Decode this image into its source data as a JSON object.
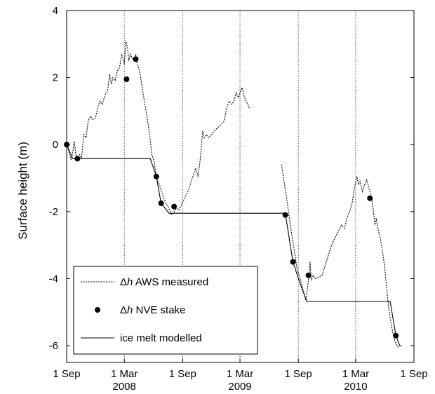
{
  "chart_data": {
    "type": "line",
    "title": "",
    "xlabel": "",
    "ylabel": "Surface height (m)",
    "ylim": [
      -6.5,
      4
    ],
    "xlim": [
      "2007-09-01",
      "2010-09-01"
    ],
    "grid": "vertical dotted lines at each x tick",
    "legend_placement": "bottom-left",
    "x_ticks": [
      {
        "date": "2007-09-01",
        "label": "1 Sep",
        "year_label": ""
      },
      {
        "date": "2008-03-01",
        "label": "1 Mar",
        "year_label": "2008"
      },
      {
        "date": "2008-09-01",
        "label": "1 Sep",
        "year_label": ""
      },
      {
        "date": "2009-03-01",
        "label": "1 Mar",
        "year_label": "2009"
      },
      {
        "date": "2009-09-01",
        "label": "1 Sep",
        "year_label": ""
      },
      {
        "date": "2010-03-01",
        "label": "1 Mar",
        "year_label": "2010"
      },
      {
        "date": "2010-09-01",
        "label": "1 Sep",
        "year_label": ""
      }
    ],
    "y_ticks": [
      {
        "value": 4,
        "label": "4"
      },
      {
        "value": 2,
        "label": "2"
      },
      {
        "value": 0,
        "label": "0"
      },
      {
        "value": -2,
        "label": "-2"
      },
      {
        "value": -4,
        "label": "-4"
      },
      {
        "value": -6,
        "label": "-6"
      }
    ],
    "legend": [
      {
        "symbol": "Δ",
        "var": "h",
        "text": " AWS measured",
        "style": "dotted"
      },
      {
        "symbol": "Δ",
        "var": "h",
        "text": " NVE stake",
        "style": "marker"
      },
      {
        "symbol": "",
        "var": "",
        "text": "ice melt modelled",
        "style": "solid"
      }
    ],
    "series": [
      {
        "name": "Δh AWS measured",
        "style": "dotted",
        "segments": [
          [
            [
              "2007-09-01",
              0.0
            ],
            [
              "2007-09-08",
              -0.2
            ],
            [
              "2007-09-15",
              -0.45
            ],
            [
              "2007-09-20",
              -0.25
            ],
            [
              "2007-09-25",
              0.1
            ],
            [
              "2007-09-30",
              -0.3
            ],
            [
              "2007-10-05",
              -0.45
            ],
            [
              "2007-10-12",
              -0.3
            ],
            [
              "2007-10-18",
              -0.4
            ],
            [
              "2007-10-25",
              0.3
            ],
            [
              "2007-11-01",
              0.2
            ],
            [
              "2007-11-08",
              0.7
            ],
            [
              "2007-11-15",
              0.85
            ],
            [
              "2007-11-22",
              0.75
            ],
            [
              "2007-12-01",
              0.8
            ],
            [
              "2007-12-08",
              1.1
            ],
            [
              "2007-12-15",
              1.3
            ],
            [
              "2007-12-22",
              1.2
            ],
            [
              "2008-01-01",
              1.5
            ],
            [
              "2008-01-08",
              1.6
            ],
            [
              "2008-01-15",
              2.1
            ],
            [
              "2008-01-20",
              1.8
            ],
            [
              "2008-01-25",
              2.0
            ],
            [
              "2008-02-01",
              1.9
            ],
            [
              "2008-02-08",
              2.2
            ],
            [
              "2008-02-15",
              2.3
            ],
            [
              "2008-02-22",
              2.7
            ],
            [
              "2008-03-01",
              2.4
            ],
            [
              "2008-03-06",
              3.1
            ],
            [
              "2008-03-11",
              2.9
            ],
            [
              "2008-03-15",
              2.5
            ],
            [
              "2008-03-20",
              2.7
            ],
            [
              "2008-03-25",
              2.6
            ],
            [
              "2008-04-01",
              2.5
            ],
            [
              "2008-04-06",
              2.7
            ],
            [
              "2008-04-11",
              2.4
            ],
            [
              "2008-04-18",
              2.2
            ],
            [
              "2008-04-25",
              1.8
            ],
            [
              "2008-05-03",
              1.3
            ],
            [
              "2008-05-12",
              0.8
            ],
            [
              "2008-05-20",
              0.3
            ],
            [
              "2008-05-27",
              -0.3
            ],
            [
              "2008-06-03",
              -0.5
            ],
            [
              "2008-06-10",
              -0.95
            ],
            [
              "2008-06-20",
              -1.2
            ],
            [
              "2008-06-30",
              -1.5
            ],
            [
              "2008-07-10",
              -1.75
            ],
            [
              "2008-07-20",
              -1.9
            ],
            [
              "2008-07-28",
              -2.1
            ],
            [
              "2008-08-05",
              -2.0
            ],
            [
              "2008-08-12",
              -1.9
            ],
            [
              "2008-08-20",
              -1.95
            ],
            [
              "2008-08-28",
              -1.8
            ],
            [
              "2008-09-05",
              -1.65
            ],
            [
              "2008-09-12",
              -1.5
            ],
            [
              "2008-09-20",
              -1.35
            ],
            [
              "2008-09-28",
              -1.1
            ],
            [
              "2008-10-05",
              -0.9
            ],
            [
              "2008-10-12",
              -0.7
            ],
            [
              "2008-10-20",
              -0.95
            ],
            [
              "2008-10-27",
              -0.4
            ],
            [
              "2008-11-03",
              0.4
            ],
            [
              "2008-11-08",
              0.2
            ],
            [
              "2008-11-15",
              0.3
            ],
            [
              "2008-11-22",
              0.2
            ],
            [
              "2008-12-01",
              0.3
            ],
            [
              "2008-12-10",
              0.4
            ],
            [
              "2008-12-20",
              0.5
            ],
            [
              "2009-01-01",
              0.6
            ],
            [
              "2009-01-10",
              0.7
            ],
            [
              "2009-01-18",
              1.1
            ],
            [
              "2009-01-26",
              1.3
            ],
            [
              "2009-02-03",
              1.2
            ],
            [
              "2009-02-10",
              1.3
            ],
            [
              "2009-02-17",
              1.55
            ],
            [
              "2009-02-24",
              1.4
            ],
            [
              "2009-03-03",
              1.6
            ],
            [
              "2009-03-08",
              1.7
            ],
            [
              "2009-03-14",
              1.45
            ],
            [
              "2009-03-20",
              1.3
            ],
            [
              "2009-03-26",
              1.2
            ],
            [
              "2009-04-01",
              1.05
            ]
          ],
          [
            [
              "2009-07-10",
              -0.6
            ],
            [
              "2009-07-18",
              -1.1
            ],
            [
              "2009-07-25",
              -1.5
            ],
            [
              "2009-08-01",
              -2.0
            ],
            [
              "2009-08-10",
              -2.6
            ],
            [
              "2009-08-20",
              -3.2
            ],
            [
              "2009-08-28",
              -3.7
            ],
            [
              "2009-09-07",
              -4.0
            ],
            [
              "2009-09-15",
              -4.3
            ],
            [
              "2009-09-25",
              -4.65
            ],
            [
              "2009-10-05",
              -3.9
            ],
            [
              "2009-10-08",
              -3.5
            ],
            [
              "2009-10-12",
              -4.05
            ],
            [
              "2009-10-18",
              -3.9
            ],
            [
              "2009-10-25",
              -4.0
            ],
            [
              "2009-11-05",
              -3.95
            ],
            [
              "2009-11-15",
              -3.9
            ],
            [
              "2009-11-25",
              -3.6
            ],
            [
              "2009-12-05",
              -3.3
            ],
            [
              "2009-12-15",
              -3.0
            ],
            [
              "2009-12-25",
              -2.8
            ],
            [
              "2010-01-05",
              -2.6
            ],
            [
              "2010-01-15",
              -2.4
            ],
            [
              "2010-01-25",
              -2.5
            ],
            [
              "2010-02-01",
              -2.2
            ],
            [
              "2010-02-10",
              -2.0
            ],
            [
              "2010-02-18",
              -1.75
            ],
            [
              "2010-02-25",
              -1.3
            ],
            [
              "2010-03-05",
              -0.95
            ],
            [
              "2010-03-10",
              -1.2
            ],
            [
              "2010-03-15",
              -1.1
            ],
            [
              "2010-03-22",
              -1.4
            ],
            [
              "2010-03-29",
              -1.2
            ],
            [
              "2010-04-05",
              -1.05
            ],
            [
              "2010-04-12",
              -1.3
            ],
            [
              "2010-04-18",
              -1.5
            ],
            [
              "2010-04-25",
              -1.9
            ],
            [
              "2010-05-01",
              -2.4
            ],
            [
              "2010-05-05",
              -2.2
            ],
            [
              "2010-05-10",
              -2.5
            ],
            [
              "2010-05-18",
              -2.8
            ],
            [
              "2010-05-25",
              -3.2
            ],
            [
              "2010-06-01",
              -3.7
            ],
            [
              "2010-06-08",
              -4.4
            ],
            [
              "2010-06-15",
              -5.0
            ],
            [
              "2010-06-22",
              -5.4
            ],
            [
              "2010-06-28",
              -5.7
            ],
            [
              "2010-07-04",
              -5.9
            ],
            [
              "2010-07-10",
              -6.0
            ],
            [
              "2010-07-14",
              -6.05
            ]
          ]
        ]
      },
      {
        "name": "Δh NVE stake",
        "style": "marker",
        "points": [
          [
            "2007-09-01",
            0.0
          ],
          [
            "2007-10-05",
            -0.42
          ],
          [
            "2008-03-08",
            1.95
          ],
          [
            "2008-04-06",
            2.55
          ],
          [
            "2008-06-10",
            -0.95
          ],
          [
            "2008-06-25",
            -1.75
          ],
          [
            "2008-08-05",
            -1.85
          ],
          [
            "2009-07-22",
            -2.1
          ],
          [
            "2009-08-15",
            -3.5
          ],
          [
            "2009-10-03",
            -3.9
          ],
          [
            "2010-04-15",
            -1.6
          ],
          [
            "2010-07-06",
            -5.7
          ]
        ]
      },
      {
        "name": "ice melt modelled",
        "style": "solid",
        "points": [
          [
            "2007-09-01",
            0.0
          ],
          [
            "2007-09-10",
            -0.2
          ],
          [
            "2007-09-20",
            -0.42
          ],
          [
            "2008-05-22",
            -0.42
          ],
          [
            "2008-06-10",
            -0.95
          ],
          [
            "2008-06-25",
            -1.75
          ],
          [
            "2008-07-20",
            -2.05
          ],
          [
            "2009-07-22",
            -2.05
          ],
          [
            "2009-08-15",
            -3.5
          ],
          [
            "2009-09-05",
            -4.1
          ],
          [
            "2009-09-28",
            -4.68
          ],
          [
            "2010-06-18",
            -4.68
          ],
          [
            "2010-07-06",
            -5.7
          ],
          [
            "2010-07-18",
            -6.0
          ],
          [
            "2010-07-24",
            -6.0
          ]
        ]
      }
    ]
  }
}
